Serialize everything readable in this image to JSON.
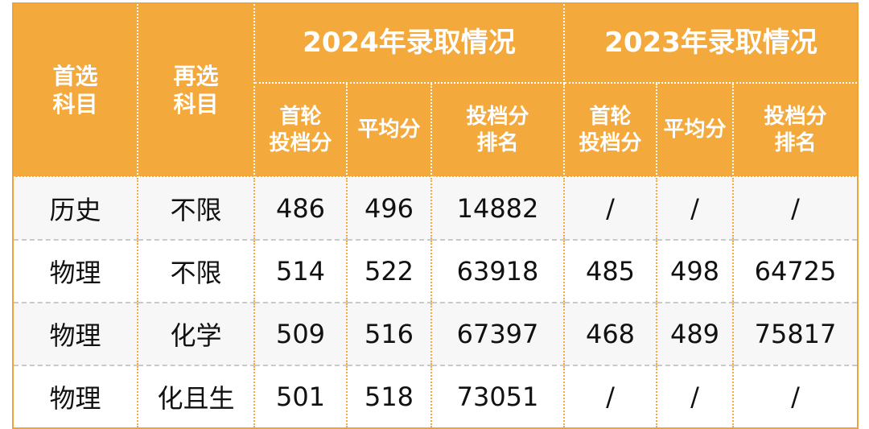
{
  "table": {
    "header": {
      "first_subject": "首选\n科目",
      "second_subject": "再选\n科目",
      "groups": [
        "2024年录取情况",
        "2023年录取情况"
      ],
      "columns_2024": [
        "首轮\n投档分",
        "平均分",
        "投档分\n排名"
      ],
      "columns_2023": [
        "首轮\n投档分",
        "平均分",
        "投档分\n排名"
      ]
    },
    "rows": [
      [
        "历史",
        "不限",
        "486",
        "496",
        "14882",
        "/",
        "/",
        "/"
      ],
      [
        "物理",
        "不限",
        "514",
        "522",
        "63918",
        "485",
        "498",
        "64725"
      ],
      [
        "物理",
        "化学",
        "509",
        "516",
        "67397",
        "468",
        "489",
        "75817"
      ],
      [
        "物理",
        "化且生",
        "501",
        "518",
        "73051",
        "/",
        "/",
        "/"
      ]
    ]
  }
}
